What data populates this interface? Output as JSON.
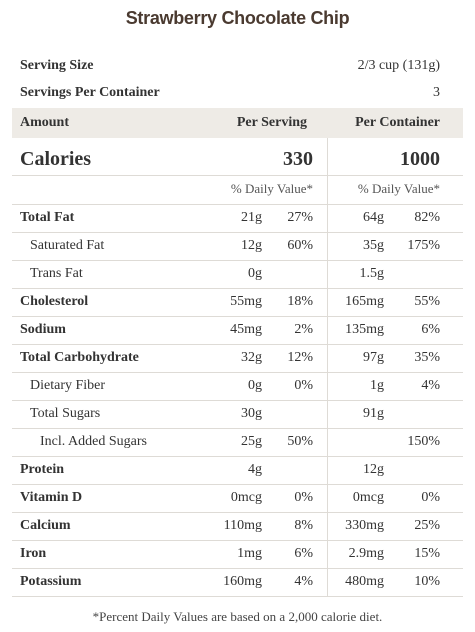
{
  "title": "Strawberry Chocolate Chip",
  "serving_size": {
    "label": "Serving Size",
    "value": "2/3 cup (131g)"
  },
  "servings_per_container": {
    "label": "Servings Per Container",
    "value": 3
  },
  "columns": [
    "Amount",
    "Per Serving",
    "Per Container"
  ],
  "calories": {
    "label": "Calories",
    "per_serving": 330,
    "per_container": 1000
  },
  "daily_value_label": "% Daily Value*",
  "nutrients": [
    {
      "name": "Total Fat",
      "per_serving": {
        "amount": "21g",
        "dv": "27%"
      },
      "per_container": {
        "amount": "64g",
        "dv": "82%"
      },
      "subrows": [
        {
          "name": "Saturated Fat",
          "per_serving": {
            "amount": "12g",
            "dv": "60%"
          },
          "per_container": {
            "amount": "35g",
            "dv": "175%"
          }
        },
        {
          "name": "Trans Fat",
          "per_serving": {
            "amount": "0g",
            "dv": null
          },
          "per_container": {
            "amount": "1.5g",
            "dv": null
          }
        }
      ]
    },
    {
      "name": "Cholesterol",
      "per_serving": {
        "amount": "55mg",
        "dv": "18%"
      },
      "per_container": {
        "amount": "165mg",
        "dv": "55%"
      }
    },
    {
      "name": "Sodium",
      "per_serving": {
        "amount": "45mg",
        "dv": "2%"
      },
      "per_container": {
        "amount": "135mg",
        "dv": "6%"
      }
    },
    {
      "name": "Total Carbohydrate",
      "per_serving": {
        "amount": "32g",
        "dv": "12%"
      },
      "per_container": {
        "amount": "97g",
        "dv": "35%"
      },
      "subrows": [
        {
          "name": "Dietary Fiber",
          "per_serving": {
            "amount": "0g",
            "dv": "0%"
          },
          "per_container": {
            "amount": "1g",
            "dv": "4%"
          }
        },
        {
          "name": "Total Sugars",
          "per_serving": {
            "amount": "30g",
            "dv": null
          },
          "per_container": {
            "amount": "91g",
            "dv": null
          },
          "subrows": [
            {
              "name": "Incl. Added Sugars",
              "per_serving": {
                "amount": "25g",
                "dv": "50%"
              },
              "per_container": {
                "amount": null,
                "dv": "150%"
              }
            }
          ]
        }
      ]
    },
    {
      "name": "Protein",
      "per_serving": {
        "amount": "4g",
        "dv": null
      },
      "per_container": {
        "amount": "12g",
        "dv": null
      }
    },
    {
      "name": "Vitamin D",
      "per_serving": {
        "amount": "0mcg",
        "dv": "0%"
      },
      "per_container": {
        "amount": "0mcg",
        "dv": "0%"
      }
    },
    {
      "name": "Calcium",
      "per_serving": {
        "amount": "110mg",
        "dv": "8%"
      },
      "per_container": {
        "amount": "330mg",
        "dv": "25%"
      }
    },
    {
      "name": "Iron",
      "per_serving": {
        "amount": "1mg",
        "dv": "6%"
      },
      "per_container": {
        "amount": "2.9mg",
        "dv": "15%"
      }
    },
    {
      "name": "Potassium",
      "per_serving": {
        "amount": "160mg",
        "dv": "4%"
      },
      "per_container": {
        "amount": "480mg",
        "dv": "10%"
      }
    }
  ],
  "footnote": "*Percent Daily Values are based on a 2,000 calorie diet."
}
